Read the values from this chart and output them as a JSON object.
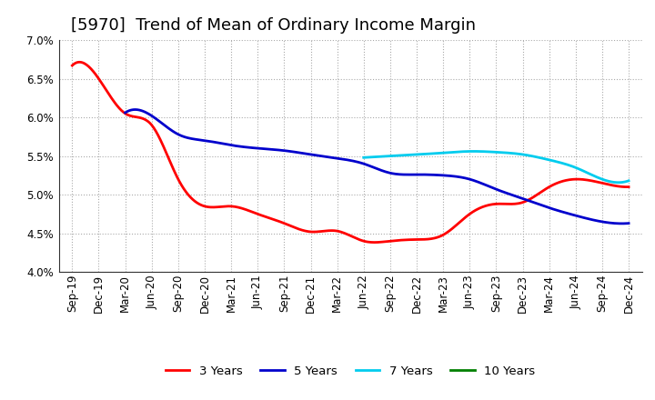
{
  "title": "[5970]  Trend of Mean of Ordinary Income Margin",
  "ylim": [
    0.04,
    0.07
  ],
  "yticks": [
    0.04,
    0.045,
    0.05,
    0.055,
    0.06,
    0.065,
    0.07
  ],
  "x_labels": [
    "Sep-19",
    "Dec-19",
    "Mar-20",
    "Jun-20",
    "Sep-20",
    "Dec-20",
    "Mar-21",
    "Jun-21",
    "Sep-21",
    "Dec-21",
    "Mar-22",
    "Jun-22",
    "Sep-22",
    "Dec-22",
    "Mar-23",
    "Jun-23",
    "Sep-23",
    "Dec-23",
    "Mar-24",
    "Jun-24",
    "Sep-24",
    "Dec-24"
  ],
  "color_3yr": "#ff0000",
  "color_5yr": "#0000cc",
  "color_7yr": "#00ccee",
  "color_10yr": "#008000",
  "series_3yr": [
    0.0667,
    0.065,
    0.0605,
    0.059,
    0.052,
    0.0485,
    0.0485,
    0.0475,
    0.0463,
    0.0452,
    0.0453,
    0.044,
    0.044,
    0.0442,
    0.0448,
    0.0475,
    0.0488,
    0.049,
    0.051,
    0.052,
    0.0515,
    0.051
  ],
  "series_5yr_x": [
    2,
    3,
    4,
    5,
    6,
    7,
    8,
    9,
    10,
    11,
    12,
    13,
    14,
    15,
    16,
    17,
    18,
    19,
    20,
    21
  ],
  "series_5yr_y": [
    0.0606,
    0.0602,
    0.0578,
    0.057,
    0.0564,
    0.056,
    0.0557,
    0.0552,
    0.0547,
    0.054,
    0.0528,
    0.0526,
    0.0525,
    0.052,
    0.0507,
    0.0495,
    0.0483,
    0.0473,
    0.0465,
    0.0463
  ],
  "series_7yr_x": [
    11,
    12,
    13,
    14,
    15,
    16,
    17,
    18,
    19,
    20,
    21
  ],
  "series_7yr_y": [
    0.0548,
    0.055,
    0.0552,
    0.0554,
    0.0556,
    0.0555,
    0.0552,
    0.0545,
    0.0535,
    0.052,
    0.0518
  ],
  "background_color": "#ffffff",
  "title_fontsize": 13,
  "tick_fontsize": 8.5
}
